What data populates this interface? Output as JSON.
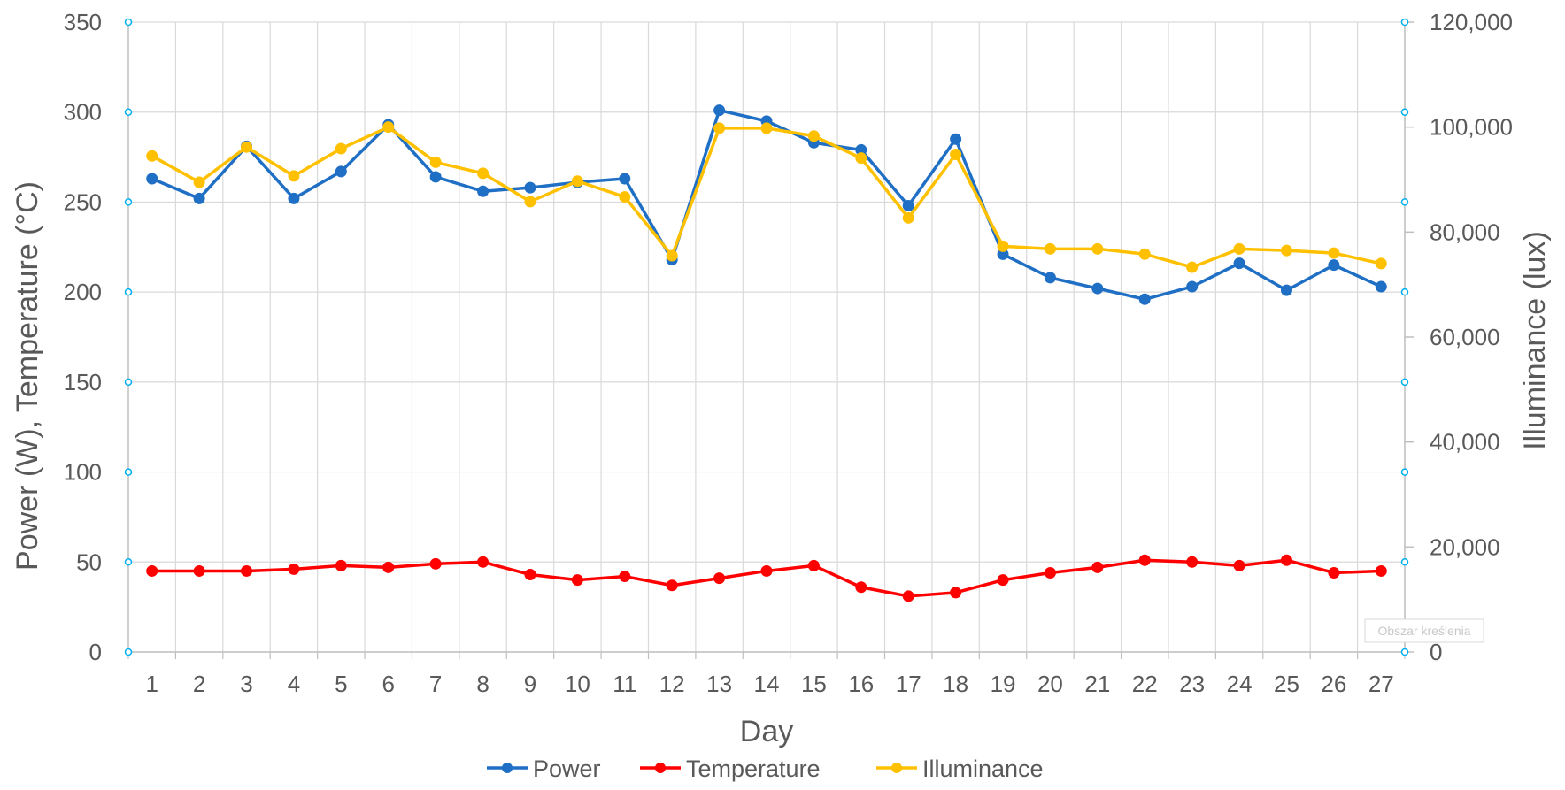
{
  "chart_data": {
    "type": "line",
    "title": "",
    "xlabel": "Day",
    "ylabel": "Power (W), Temperature (°C)",
    "y2label": "Illuminance (lux)",
    "categories": [
      1,
      2,
      3,
      4,
      5,
      6,
      7,
      8,
      9,
      10,
      11,
      12,
      13,
      14,
      15,
      16,
      17,
      18,
      19,
      20,
      21,
      22,
      23,
      24,
      25,
      26,
      27
    ],
    "ylim": [
      0,
      350
    ],
    "yticks": [
      0,
      50,
      100,
      150,
      200,
      250,
      300,
      350
    ],
    "y2lim": [
      0,
      120000
    ],
    "y2ticks": [
      "0",
      "20,000",
      "40,000",
      "60,000",
      "80,000",
      "100,000",
      "120,000"
    ],
    "y2tick_values": [
      0,
      20000,
      40000,
      60000,
      80000,
      100000,
      120000
    ],
    "grid": true,
    "legend_position": "bottom",
    "series": [
      {
        "name": "Power",
        "axis": "left",
        "color": "#1f6fc5",
        "values": [
          263,
          252,
          281,
          252,
          267,
          293,
          264,
          256,
          258,
          261,
          263,
          218,
          301,
          295,
          283,
          279,
          248,
          285,
          221,
          208,
          202,
          196,
          203,
          216,
          201,
          215,
          203
        ]
      },
      {
        "name": "Temperature",
        "axis": "left",
        "color": "#ff0000",
        "values": [
          45,
          45,
          45,
          46,
          48,
          47,
          49,
          50,
          43,
          40,
          42,
          37,
          41,
          45,
          48,
          36,
          31,
          33,
          40,
          44,
          47,
          51,
          50,
          48,
          51,
          44,
          45
        ]
      },
      {
        "name": "Illuminance",
        "axis": "right",
        "color": "#ffc000",
        "values": [
          94500,
          89500,
          96200,
          90700,
          95900,
          100000,
          93300,
          91200,
          85800,
          89700,
          86700,
          75500,
          99800,
          99800,
          98300,
          94100,
          82700,
          94800,
          77300,
          76800,
          76800,
          75800,
          73300,
          76800,
          76500,
          76000,
          74000
        ]
      }
    ]
  },
  "accent_color": "#00b0f0",
  "plot_area_label": "Obszar kreślenia",
  "legend": {
    "items": [
      "Power",
      "Temperature",
      "Illuminance"
    ]
  }
}
